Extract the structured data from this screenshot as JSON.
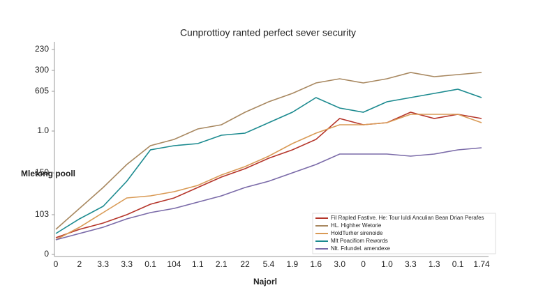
{
  "chart_data": {
    "type": "line",
    "title": "Cunprottioy ranted perfect sever security",
    "x_label": "Najorl",
    "y_label": "Mletong pooll",
    "categories": [
      "0",
      "2",
      "3.3",
      "3.3",
      "0.1",
      "104",
      "1.1",
      "2.1",
      "22",
      "5.4",
      "1.9",
      "1.6",
      "3.0",
      "0",
      "1.0",
      "3.3",
      "1.3",
      "0.1",
      "1.74"
    ],
    "ylim": [
      0,
      100
    ],
    "yticks": [
      0,
      {
        "value": 19,
        "label": "103"
      },
      {
        "value": 39,
        "label": "150"
      },
      {
        "value": 59,
        "label": "1.0"
      },
      {
        "value": 78,
        "label": "605"
      },
      {
        "value": 88,
        "label": "300"
      },
      {
        "value": 98,
        "label": "230"
      }
    ],
    "grid": false,
    "legend": "lower right",
    "series": [
      {
        "name": "Fil Rapled Fastive. He: Tour luldi Anculian Bean Drian Perafes",
        "color": "#b5352a",
        "values": [
          8,
          12,
          15,
          19,
          24,
          27,
          32,
          37,
          41,
          46,
          50,
          55,
          65,
          62,
          63,
          68,
          65,
          67,
          65
        ]
      },
      {
        "name": "HL. Highher Wetorie",
        "color": "#a88860",
        "values": [
          12,
          22,
          32,
          43,
          52,
          55,
          60,
          62,
          68,
          73,
          77,
          82,
          84,
          82,
          84,
          87,
          85,
          86,
          87
        ]
      },
      {
        "name": "HoldTurher sirenoide",
        "color": "#d99a55",
        "values": [
          7,
          13,
          20,
          27,
          28,
          30,
          33,
          38,
          42,
          47,
          53,
          58,
          62,
          62,
          63,
          67,
          67,
          67,
          63
        ]
      },
      {
        "name": "Mlt Poacifiom Rewords",
        "color": "#1b8a8f",
        "values": [
          10,
          17,
          23,
          35,
          50,
          52,
          53,
          57,
          58,
          63,
          68,
          75,
          70,
          68,
          73,
          75,
          77,
          79,
          75
        ]
      },
      {
        "name": "Nlt. Frlundel. amendexe",
        "color": "#7a6aa8",
        "values": [
          7,
          10,
          13,
          17,
          20,
          22,
          25,
          28,
          32,
          35,
          39,
          43,
          48,
          48,
          48,
          47,
          48,
          50,
          51
        ]
      }
    ]
  }
}
